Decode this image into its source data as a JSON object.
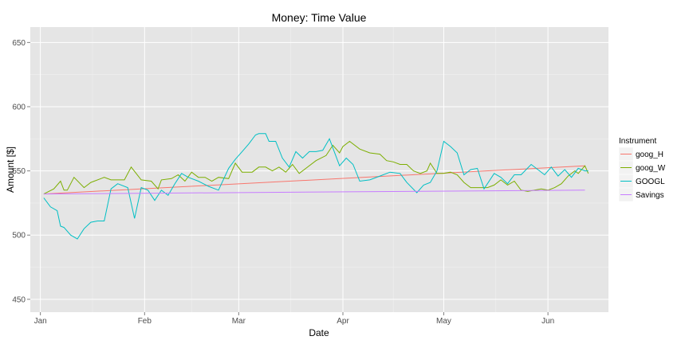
{
  "chart_data": {
    "type": "line",
    "title": "Money:  Time Value",
    "xlabel": "Date",
    "ylabel": "Amount [$]",
    "ylim": [
      440,
      662
    ],
    "xlim": [
      "2014-12-29",
      "2015-06-19"
    ],
    "y_ticks": [
      450,
      500,
      550,
      600,
      650
    ],
    "x_ticks": [
      {
        "date": "2015-01-01",
        "label": "Jan"
      },
      {
        "date": "2015-02-01",
        "label": "Feb"
      },
      {
        "date": "2015-03-01",
        "label": "Mar"
      },
      {
        "date": "2015-04-01",
        "label": "Apr"
      },
      {
        "date": "2015-05-01",
        "label": "May"
      },
      {
        "date": "2015-06-01",
        "label": "Jun"
      }
    ],
    "grid": true,
    "legend": {
      "title": "Instrument",
      "placement": "right"
    },
    "series": [
      {
        "name": "goog_H",
        "color": "#F8766D",
        "points": [
          [
            "2015-01-02",
            532
          ],
          [
            "2015-06-12",
            554
          ]
        ]
      },
      {
        "name": "goog_W",
        "color": "#7CAE00",
        "points": [
          [
            "2015-01-02",
            532
          ],
          [
            "2015-01-05",
            536
          ],
          [
            "2015-01-07",
            542
          ],
          [
            "2015-01-08",
            535
          ],
          [
            "2015-01-09",
            535
          ],
          [
            "2015-01-11",
            545
          ],
          [
            "2015-01-14",
            537
          ],
          [
            "2015-01-16",
            541
          ],
          [
            "2015-01-20",
            545
          ],
          [
            "2015-01-22",
            543
          ],
          [
            "2015-01-26",
            543
          ],
          [
            "2015-01-28",
            553
          ],
          [
            "2015-01-31",
            543
          ],
          [
            "2015-02-03",
            542
          ],
          [
            "2015-02-05",
            536
          ],
          [
            "2015-02-06",
            543
          ],
          [
            "2015-02-09",
            544
          ],
          [
            "2015-02-11",
            547
          ],
          [
            "2015-02-13",
            542
          ],
          [
            "2015-02-15",
            549
          ],
          [
            "2015-02-17",
            545
          ],
          [
            "2015-02-19",
            545
          ],
          [
            "2015-02-21",
            542
          ],
          [
            "2015-02-23",
            545
          ],
          [
            "2015-02-26",
            544
          ],
          [
            "2015-02-28",
            556
          ],
          [
            "2015-03-02",
            549
          ],
          [
            "2015-03-04",
            549
          ],
          [
            "2015-03-05",
            549
          ],
          [
            "2015-03-07",
            553
          ],
          [
            "2015-03-09",
            553
          ],
          [
            "2015-03-11",
            550
          ],
          [
            "2015-03-13",
            553
          ],
          [
            "2015-03-15",
            549
          ],
          [
            "2015-03-17",
            555
          ],
          [
            "2015-03-19",
            548
          ],
          [
            "2015-03-21",
            552
          ],
          [
            "2015-03-24",
            558
          ],
          [
            "2015-03-27",
            562
          ],
          [
            "2015-03-29",
            570
          ],
          [
            "2015-03-31",
            564
          ],
          [
            "2015-04-01",
            569
          ],
          [
            "2015-04-03",
            573
          ],
          [
            "2015-04-06",
            567
          ],
          [
            "2015-04-09",
            564
          ],
          [
            "2015-04-12",
            563
          ],
          [
            "2015-04-14",
            558
          ],
          [
            "2015-04-16",
            557
          ],
          [
            "2015-04-18",
            555
          ],
          [
            "2015-04-20",
            555
          ],
          [
            "2015-04-22",
            550
          ],
          [
            "2015-04-24",
            548
          ],
          [
            "2015-04-26",
            550
          ],
          [
            "2015-04-27",
            556
          ],
          [
            "2015-04-29",
            548
          ],
          [
            "2015-05-01",
            548
          ],
          [
            "2015-05-03",
            549
          ],
          [
            "2015-05-05",
            547
          ],
          [
            "2015-05-07",
            541
          ],
          [
            "2015-05-09",
            537
          ],
          [
            "2015-05-11",
            537
          ],
          [
            "2015-05-14",
            537
          ],
          [
            "2015-05-16",
            539
          ],
          [
            "2015-05-18",
            543
          ],
          [
            "2015-05-20",
            539
          ],
          [
            "2015-05-22",
            542
          ],
          [
            "2015-05-24",
            535
          ],
          [
            "2015-05-26",
            534
          ],
          [
            "2015-05-28",
            535
          ],
          [
            "2015-05-30",
            536
          ],
          [
            "2015-06-01",
            535
          ],
          [
            "2015-06-03",
            537
          ],
          [
            "2015-06-05",
            540
          ],
          [
            "2015-06-07",
            546
          ],
          [
            "2015-06-09",
            550
          ],
          [
            "2015-06-10",
            548
          ],
          [
            "2015-06-12",
            554
          ],
          [
            "2015-06-13",
            548
          ]
        ]
      },
      {
        "name": "GOOGL",
        "color": "#00BFC4",
        "points": [
          [
            "2015-01-02",
            529
          ],
          [
            "2015-01-04",
            522
          ],
          [
            "2015-01-06",
            519
          ],
          [
            "2015-01-07",
            507
          ],
          [
            "2015-01-08",
            506
          ],
          [
            "2015-01-10",
            500
          ],
          [
            "2015-01-12",
            497
          ],
          [
            "2015-01-14",
            505
          ],
          [
            "2015-01-16",
            510
          ],
          [
            "2015-01-18",
            511
          ],
          [
            "2015-01-20",
            511
          ],
          [
            "2015-01-22",
            536
          ],
          [
            "2015-01-24",
            540
          ],
          [
            "2015-01-27",
            537
          ],
          [
            "2015-01-29",
            513
          ],
          [
            "2015-01-31",
            537
          ],
          [
            "2015-02-02",
            535
          ],
          [
            "2015-02-04",
            527
          ],
          [
            "2015-02-06",
            535
          ],
          [
            "2015-02-08",
            531
          ],
          [
            "2015-02-10",
            540
          ],
          [
            "2015-02-12",
            548
          ],
          [
            "2015-02-14",
            545
          ],
          [
            "2015-02-17",
            542
          ],
          [
            "2015-02-20",
            538
          ],
          [
            "2015-02-23",
            535
          ],
          [
            "2015-02-26",
            552
          ],
          [
            "2015-02-28",
            559
          ],
          [
            "2015-03-02",
            565
          ],
          [
            "2015-03-04",
            571
          ],
          [
            "2015-03-06",
            578
          ],
          [
            "2015-03-07",
            579
          ],
          [
            "2015-03-09",
            579
          ],
          [
            "2015-03-10",
            573
          ],
          [
            "2015-03-12",
            573
          ],
          [
            "2015-03-14",
            560
          ],
          [
            "2015-03-16",
            553
          ],
          [
            "2015-03-18",
            565
          ],
          [
            "2015-03-20",
            560
          ],
          [
            "2015-03-22",
            565
          ],
          [
            "2015-03-24",
            565
          ],
          [
            "2015-03-26",
            566
          ],
          [
            "2015-03-28",
            575
          ],
          [
            "2015-03-31",
            554
          ],
          [
            "2015-04-02",
            560
          ],
          [
            "2015-04-04",
            555
          ],
          [
            "2015-04-06",
            542
          ],
          [
            "2015-04-09",
            543
          ],
          [
            "2015-04-12",
            546
          ],
          [
            "2015-04-15",
            549
          ],
          [
            "2015-04-18",
            548
          ],
          [
            "2015-04-20",
            541
          ],
          [
            "2015-04-23",
            533
          ],
          [
            "2015-04-25",
            539
          ],
          [
            "2015-04-27",
            541
          ],
          [
            "2015-04-29",
            550
          ],
          [
            "2015-05-01",
            573
          ],
          [
            "2015-05-03",
            569
          ],
          [
            "2015-05-05",
            564
          ],
          [
            "2015-05-07",
            547
          ],
          [
            "2015-05-09",
            551
          ],
          [
            "2015-05-11",
            552
          ],
          [
            "2015-05-13",
            536
          ],
          [
            "2015-05-16",
            548
          ],
          [
            "2015-05-18",
            545
          ],
          [
            "2015-05-20",
            540
          ],
          [
            "2015-05-22",
            547
          ],
          [
            "2015-05-24",
            547
          ],
          [
            "2015-05-27",
            555
          ],
          [
            "2015-05-29",
            551
          ],
          [
            "2015-05-31",
            547
          ],
          [
            "2015-06-02",
            553
          ],
          [
            "2015-06-04",
            546
          ],
          [
            "2015-06-06",
            551
          ],
          [
            "2015-06-08",
            545
          ],
          [
            "2015-06-10",
            552
          ],
          [
            "2015-06-12",
            550
          ],
          [
            "2015-06-13",
            550
          ]
        ]
      },
      {
        "name": "Savings",
        "color": "#C77CFF",
        "points": [
          [
            "2015-01-02",
            532
          ],
          [
            "2015-06-12",
            535
          ]
        ]
      }
    ]
  }
}
